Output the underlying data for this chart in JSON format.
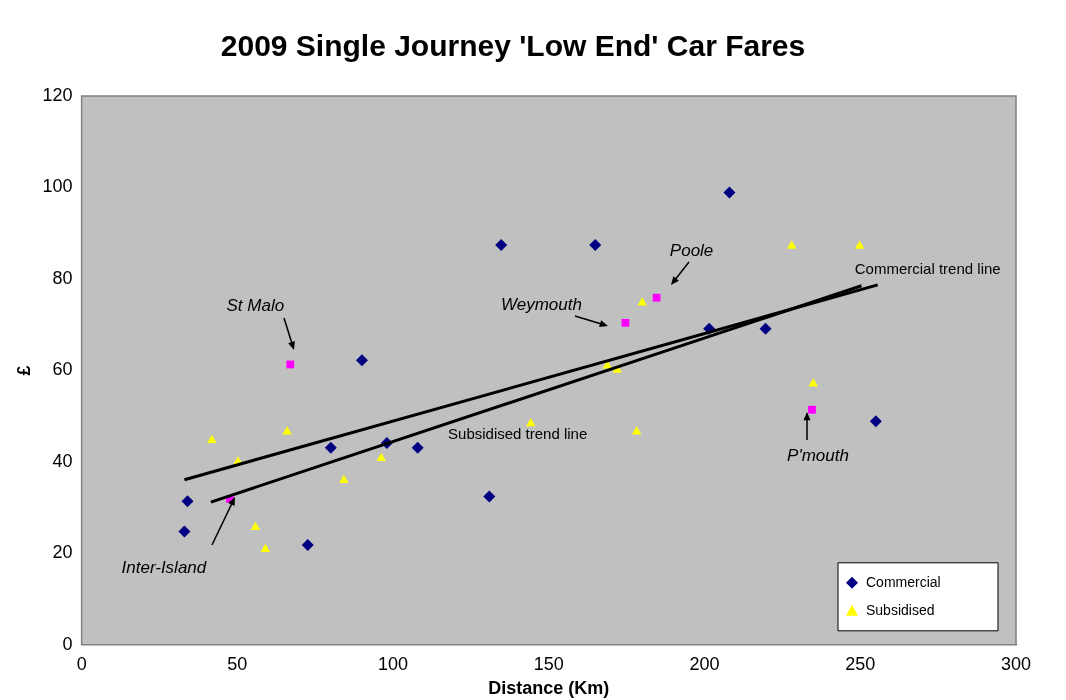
{
  "chart_data": {
    "type": "scatter",
    "title": "2009 Single Journey 'Low End' Car Fares",
    "xlabel": "Distance (Km)",
    "ylabel": "£",
    "xlim": [
      0,
      300
    ],
    "xticks": [
      0,
      50,
      100,
      150,
      200,
      250,
      300
    ],
    "ylim": [
      0,
      120
    ],
    "yticks": [
      0,
      20,
      40,
      60,
      80,
      100,
      120
    ],
    "grid": false,
    "legend": "bottom right",
    "series": [
      {
        "name": "Commercial",
        "color": "#000080",
        "marker": "diamond",
        "x": [
          33,
          34,
          47.6,
          67,
          72.6,
          80,
          90,
          98,
          107.9,
          130.9,
          134.7,
          164.9,
          174.6,
          184.6,
          201.5,
          208,
          219.6,
          234.5,
          255
        ],
        "values": [
          24.8,
          31.4,
          null,
          null,
          21.8,
          43.1,
          62.2,
          44.1,
          43.1,
          32.4,
          87.4,
          87.4,
          null,
          null,
          69.1,
          98.9,
          69.1,
          null,
          48.9
        ]
      },
      {
        "color": "#ff00ff",
        "marker": "square",
        "x": [
          47.6,
          67,
          174.6,
          184.6,
          234.5
        ],
        "values": [
          31.9,
          61.3,
          70.4,
          75.9,
          51.4
        ]
      },
      {
        "name": "Subsidised",
        "color": "#ffff00",
        "marker": "triangle",
        "x": [
          41.8,
          50.2,
          55.8,
          59,
          66,
          84.2,
          96.2,
          144.2,
          168.8,
          172,
          178.2,
          180,
          228,
          234.9,
          249.8
        ],
        "values": [
          44.7,
          40,
          25.7,
          20.9,
          46.6,
          36,
          40.8,
          48.4,
          61,
          60.1,
          46.6,
          74.8,
          87.2,
          57.1,
          87.2
        ]
      },
      {
        "type": "line",
        "color": "#000000",
        "marker": "none",
        "x": [
          33,
          255.6
        ],
        "values": [
          36.1,
          78.7
        ]
      },
      {
        "type": "line",
        "color": "#000000",
        "marker": "none",
        "x": [
          41.5,
          250.4
        ],
        "values": [
          31.2,
          78.5
        ]
      }
    ],
    "annotations": [
      {
        "text": "St Malo",
        "x": 67,
        "y": 61.3
      },
      {
        "text": "Inter-Island",
        "x": 47.6,
        "y": 31.9
      },
      {
        "text": "Weymouth",
        "x": 174.6,
        "y": 70.4
      },
      {
        "text": "Poole",
        "x": 184.6,
        "y": 75.9
      },
      {
        "text": "P'mouth",
        "x": 234.5,
        "y": 51.4
      },
      {
        "text": "Commercial trend line",
        "x": 255.6,
        "y": 78.7
      },
      {
        "text": "Subsidised trend line",
        "x": 140,
        "y": 53.4
      }
    ]
  }
}
